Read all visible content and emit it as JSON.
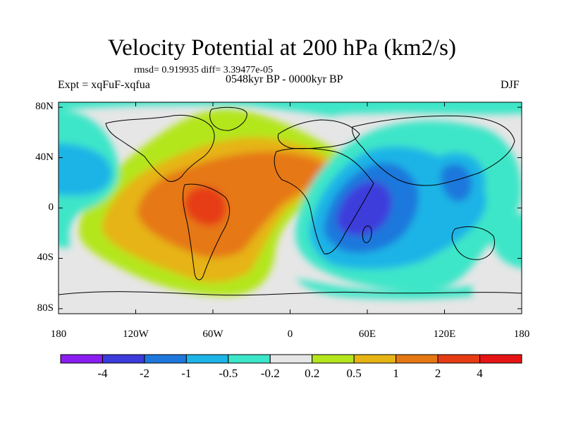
{
  "title": "Velocity Potential at 200 hPa (km2/s)",
  "stats": "rmsd= 0.919935 diff= 3.39477e-05",
  "period": "0548kyr BP - 0000kyr BP",
  "experiment": "Expt = xqFuF-xqfua",
  "season": "DJF",
  "axes": {
    "lon_ticks": [
      {
        "lon": -180,
        "label": "180"
      },
      {
        "lon": -120,
        "label": "120W"
      },
      {
        "lon": -60,
        "label": "60W"
      },
      {
        "lon": 0,
        "label": "0"
      },
      {
        "lon": 60,
        "label": "60E"
      },
      {
        "lon": 120,
        "label": "120E"
      },
      {
        "lon": 180,
        "label": "180"
      }
    ],
    "lat_ticks": [
      {
        "lat": 80,
        "label": "80N"
      },
      {
        "lat": 40,
        "label": "40N"
      },
      {
        "lat": 0,
        "label": "0"
      },
      {
        "lat": -40,
        "label": "40S"
      },
      {
        "lat": -80,
        "label": "80S"
      }
    ]
  },
  "colorbar": {
    "colors": [
      "#8a1ef0",
      "#3c3cdc",
      "#1e78dc",
      "#1eb4e6",
      "#3ce6c8",
      "#e6e6e6",
      "#b4e61e",
      "#e6b414",
      "#e67814",
      "#e63c14",
      "#e61414"
    ],
    "labels": [
      "-4",
      "-2",
      "-1",
      "-0.5",
      "-0.2",
      "0.2",
      "0.5",
      "1",
      "2",
      "4"
    ]
  }
}
